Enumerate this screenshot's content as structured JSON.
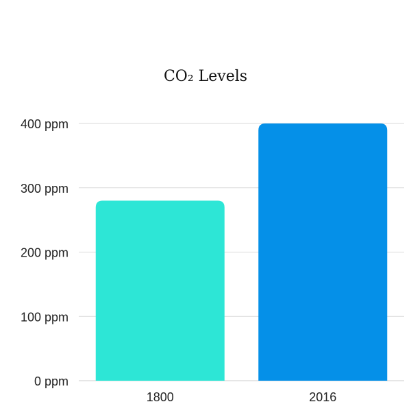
{
  "chart_data": {
    "type": "bar",
    "title": "CO₂ Levels",
    "categories": [
      "1800",
      "2016"
    ],
    "values": [
      280,
      400
    ],
    "ylim": [
      0,
      400
    ],
    "yticks": [
      0,
      100,
      200,
      300,
      400
    ],
    "ytick_labels": [
      "0 ppm",
      "100 ppm",
      "200 ppm",
      "300 ppm",
      "400 ppm"
    ],
    "xlabel": "",
    "ylabel": "",
    "grid": true,
    "legend": "none",
    "bar_colors": [
      "#2de6d6",
      "#0590e8"
    ]
  }
}
